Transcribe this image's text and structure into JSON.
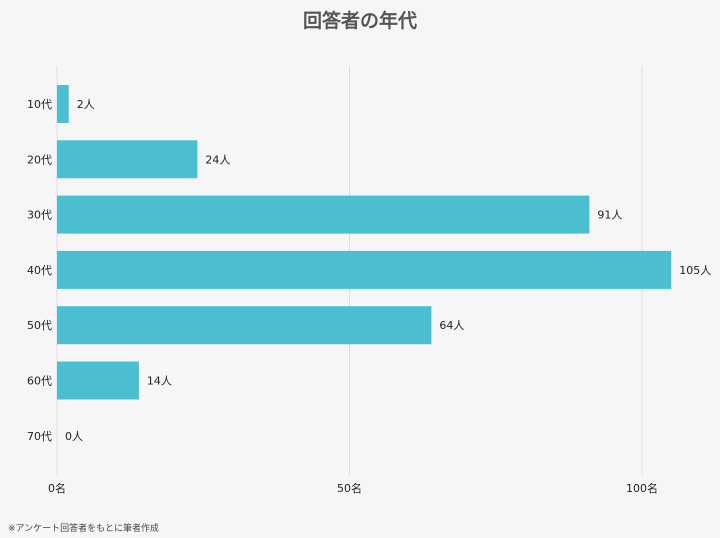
{
  "colors": {
    "bar": "#4bbfcf",
    "background": "#f6f6f6",
    "grid": "#dddddd",
    "title": "#555555"
  },
  "chart_data": {
    "type": "bar",
    "orientation": "horizontal",
    "title": "回答者の年代",
    "categories": [
      "10代",
      "20代",
      "30代",
      "40代",
      "50代",
      "60代",
      "70代"
    ],
    "values": [
      2,
      24,
      91,
      105,
      64,
      14,
      0
    ],
    "value_labels": [
      "2人",
      "24人",
      "91人",
      "105人",
      "64人",
      "14人",
      "0人"
    ],
    "xlim": [
      0,
      110
    ],
    "x_ticks": [
      0,
      50,
      100
    ],
    "x_tick_labels": [
      "0名",
      "50名",
      "100名"
    ],
    "grid": true,
    "legend": "none"
  },
  "footnote": "※アンケート回答者をもとに筆者作成"
}
